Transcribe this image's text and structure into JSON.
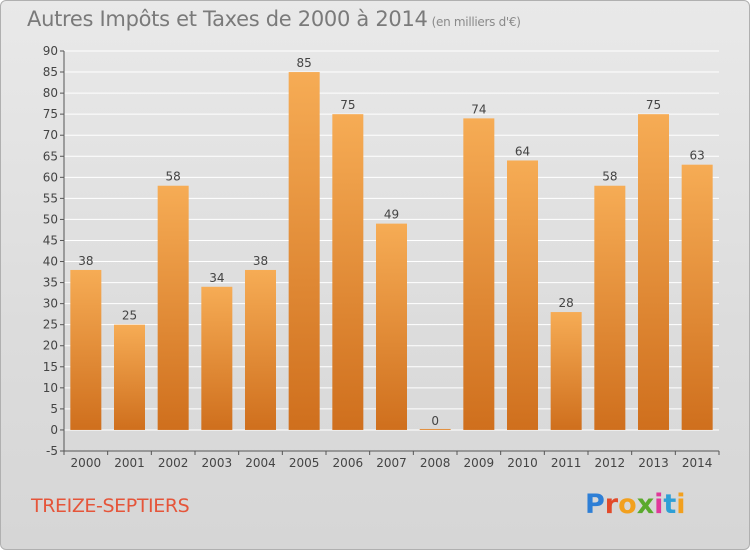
{
  "header": {
    "title": "Autres Impôts et Taxes de 2000 à 2014",
    "unit": "(en milliers d'€)"
  },
  "footer": {
    "place": "TREIZE-SEPTIERS",
    "brand": "Proxiti",
    "brand_colors": [
      "#2e7fd6",
      "#e24a2a",
      "#f2a01e",
      "#5aaa2d",
      "#e0389a",
      "#2e9fd6",
      "#f2a01e"
    ]
  },
  "colors": {
    "bar_light": "#f6ac55",
    "bar_dark": "#cf6f1d",
    "grid": "#ffffff",
    "axis": "#555555",
    "label": "#444444",
    "title": "#7a7a7a",
    "place": "#e5553a"
  },
  "chart_data": {
    "type": "bar",
    "title": "Autres Impôts et Taxes de 2000 à 2014",
    "subtitle": "(en milliers d'€)",
    "xlabel": "",
    "ylabel": "",
    "categories": [
      "2000",
      "2001",
      "2002",
      "2003",
      "2004",
      "2005",
      "2006",
      "2007",
      "2008",
      "2009",
      "2010",
      "2011",
      "2012",
      "2013",
      "2014"
    ],
    "values": [
      38,
      25,
      58,
      34,
      38,
      85,
      75,
      49,
      0,
      74,
      64,
      28,
      58,
      75,
      63
    ],
    "ylim": [
      -5,
      90
    ],
    "yticks": [
      -5,
      0,
      5,
      10,
      15,
      20,
      25,
      30,
      35,
      40,
      45,
      50,
      55,
      60,
      65,
      70,
      75,
      80,
      85,
      90
    ],
    "grid": true,
    "data_labels": true
  }
}
